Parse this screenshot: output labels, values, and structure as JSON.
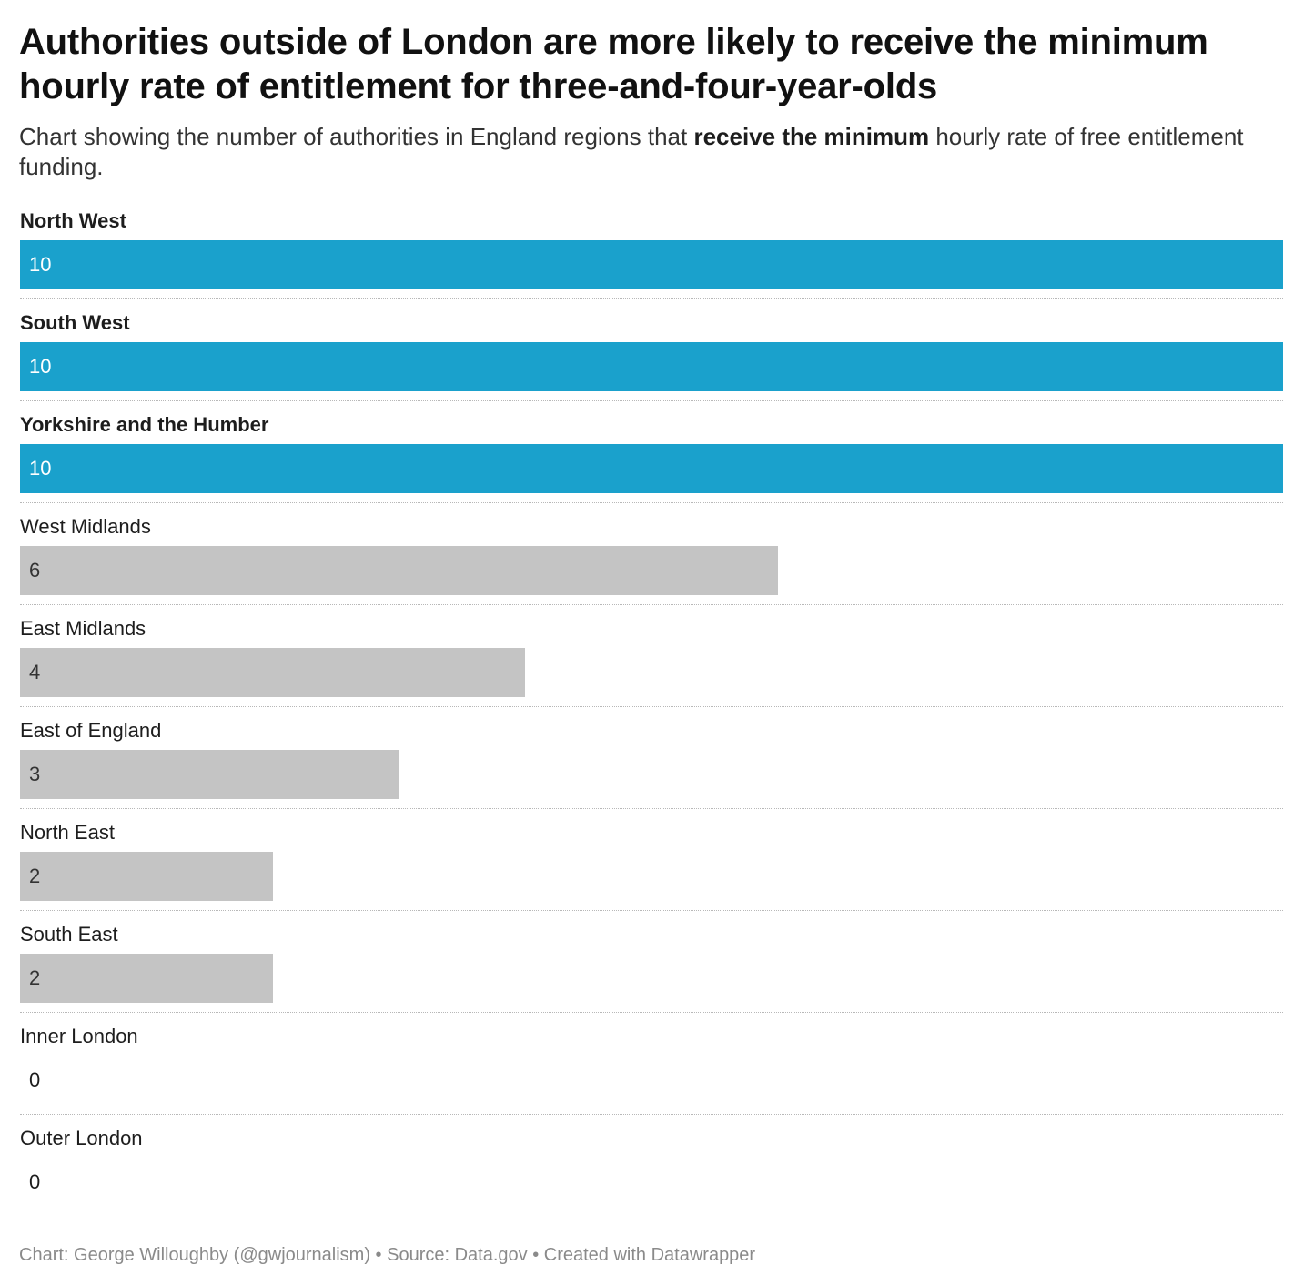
{
  "header": {
    "title": "Authorities outside of London are more likely to receive the minimum hourly rate of entitlement for three-and-four-year-olds",
    "subtitle_pre": "Chart showing the number of authorities in England regions that ",
    "subtitle_bold": "receive the minimum",
    "subtitle_post": " hourly rate of free entitlement funding."
  },
  "footer": {
    "credit": "Chart: George Willoughby (@gwjournalism) • Source: Data.gov • Created with Datawrapper"
  },
  "colors": {
    "highlight": "#1aa1cc",
    "default": "#c4c4c4",
    "value_on_highlight": "#ffffff",
    "value_on_default": "#333333"
  },
  "chart_data": {
    "type": "bar",
    "orientation": "horizontal",
    "categories": [
      "North West",
      "South West",
      "Yorkshire and the Humber",
      "West Midlands",
      "East Midlands",
      "East of England",
      "North East",
      "South East",
      "Inner London",
      "Outer London"
    ],
    "values": [
      10,
      10,
      10,
      6,
      4,
      3,
      2,
      2,
      0,
      0
    ],
    "highlighted": [
      true,
      true,
      true,
      false,
      false,
      false,
      false,
      false,
      false,
      false
    ],
    "xlim": [
      0,
      10
    ],
    "grid": false,
    "legend": "none"
  }
}
